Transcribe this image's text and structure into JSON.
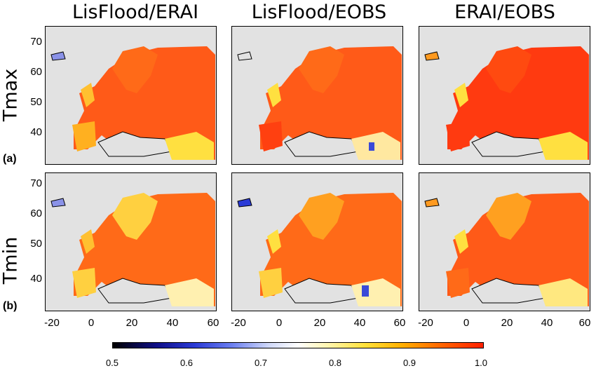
{
  "columns": [
    "LisFlood/ERAI",
    "LisFlood/EOBS",
    "ERAI/EOBS"
  ],
  "rows": [
    {
      "variable": "Tmax",
      "tag": "(a)"
    },
    {
      "variable": "Tmin",
      "tag": "(b)"
    }
  ],
  "y_ticks": [
    "70",
    "60",
    "50",
    "40"
  ],
  "x_ticks": [
    "-20",
    "0",
    "20",
    "40",
    "60"
  ],
  "colorbar": {
    "labels": [
      "0.5",
      "0.6",
      "0.7",
      "0.8",
      "0.9",
      "1.0"
    ],
    "colors": [
      "#000000",
      "#2a3ad6",
      "#ffffff",
      "#ffe23a",
      "#ff6a00",
      "#ff2000"
    ]
  },
  "colors": {
    "land_high": "#ff3a10",
    "land_mid": "#ff7a10",
    "land_low": "#ffd23a",
    "background": "#e2e2e2"
  }
}
